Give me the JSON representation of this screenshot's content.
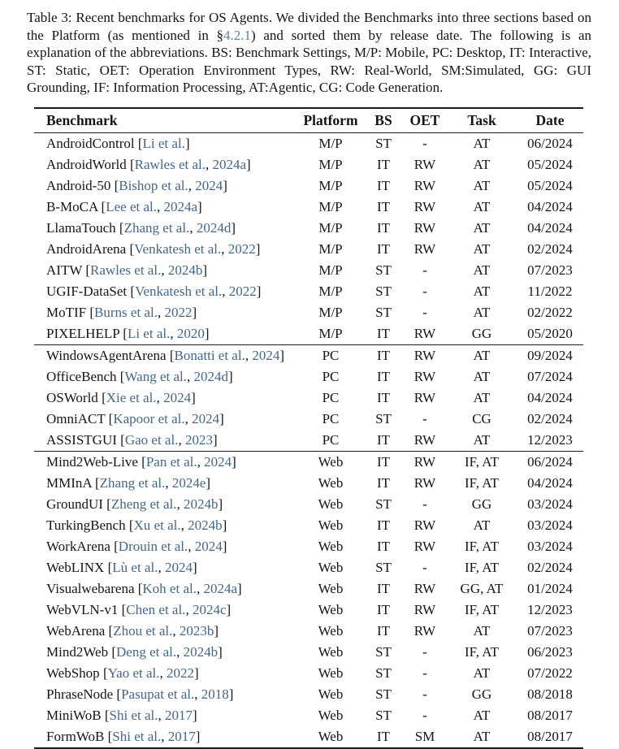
{
  "caption": {
    "text_before_ref": "Table 3: Recent benchmarks for OS Agents. We divided the Benchmarks into three sections based on the Platform (as mentioned in §",
    "ref_text": "4.2.1",
    "text_after_ref": ") and sorted them by release date. The following is an explanation of the abbreviations. BS: Benchmark Settings, M/P: Mobile, PC: Desktop, IT: Interactive, ST: Static, OET: Operation Environment Types, RW: Real-World, SM:Simulated, GG: GUI Grounding, IF: Information Processing, AT:Agentic, CG: Code Generation."
  },
  "colors": {
    "text": "#151515",
    "rule": "#1b1b1b",
    "citation_link": "#44678a",
    "caption_ref_link": "#5d86a0"
  },
  "table": {
    "headers": [
      "Benchmark",
      "Platform",
      "BS",
      "OET",
      "Task",
      "Date"
    ],
    "sections": [
      {
        "name": "mobile",
        "rows": [
          {
            "benchmark": "AndroidControl",
            "authors": "Li et al.",
            "year": "",
            "platform": "M/P",
            "bs": "ST",
            "oet": "-",
            "task": "AT",
            "date": "06/2024"
          },
          {
            "benchmark": "AndroidWorld",
            "authors": "Rawles et al.",
            "year": "2024a",
            "platform": "M/P",
            "bs": "IT",
            "oet": "RW",
            "task": "AT",
            "date": "05/2024"
          },
          {
            "benchmark": "Android-50",
            "authors": "Bishop et al.",
            "year": "2024",
            "platform": "M/P",
            "bs": "IT",
            "oet": "RW",
            "task": "AT",
            "date": "05/2024"
          },
          {
            "benchmark": "B-MoCA",
            "authors": "Lee et al.",
            "year": "2024a",
            "platform": "M/P",
            "bs": "IT",
            "oet": "RW",
            "task": "AT",
            "date": "04/2024"
          },
          {
            "benchmark": "LlamaTouch",
            "authors": "Zhang et al.",
            "year": "2024d",
            "platform": "M/P",
            "bs": "IT",
            "oet": "RW",
            "task": "AT",
            "date": "04/2024"
          },
          {
            "benchmark": "AndroidArena",
            "authors": "Venkatesh et al.",
            "year": "2022",
            "platform": "M/P",
            "bs": "IT",
            "oet": "RW",
            "task": "AT",
            "date": "02/2024"
          },
          {
            "benchmark": "AITW",
            "authors": "Rawles et al.",
            "year": "2024b",
            "platform": "M/P",
            "bs": "ST",
            "oet": "-",
            "task": "AT",
            "date": "07/2023"
          },
          {
            "benchmark": "UGIF-DataSet",
            "authors": "Venkatesh et al.",
            "year": "2022",
            "platform": "M/P",
            "bs": "ST",
            "oet": "-",
            "task": "AT",
            "date": "11/2022"
          },
          {
            "benchmark": "MoTIF",
            "authors": "Burns et al.",
            "year": "2022",
            "platform": "M/P",
            "bs": "ST",
            "oet": "-",
            "task": "AT",
            "date": "02/2022"
          },
          {
            "benchmark": "PIXELHELP",
            "authors": "Li et al.",
            "year": "2020",
            "platform": "M/P",
            "bs": "IT",
            "oet": "RW",
            "task": "GG",
            "date": "05/2020"
          }
        ]
      },
      {
        "name": "desktop",
        "rows": [
          {
            "benchmark": "WindowsAgentArena",
            "authors": "Bonatti et al.",
            "year": "2024",
            "platform": "PC",
            "bs": "IT",
            "oet": "RW",
            "task": "AT",
            "date": "09/2024"
          },
          {
            "benchmark": "OfficeBench",
            "authors": "Wang et al.",
            "year": "2024d",
            "platform": "PC",
            "bs": "IT",
            "oet": "RW",
            "task": "AT",
            "date": "07/2024"
          },
          {
            "benchmark": "OSWorld",
            "authors": "Xie et al.",
            "year": "2024",
            "platform": "PC",
            "bs": "IT",
            "oet": "RW",
            "task": "AT",
            "date": "04/2024"
          },
          {
            "benchmark": "OmniACT",
            "authors": "Kapoor et al.",
            "year": "2024",
            "platform": "PC",
            "bs": "ST",
            "oet": "-",
            "task": "CG",
            "date": "02/2024"
          },
          {
            "benchmark": "ASSISTGUI",
            "authors": "Gao et al.",
            "year": "2023",
            "platform": "PC",
            "bs": "IT",
            "oet": "RW",
            "task": "AT",
            "date": "12/2023"
          }
        ]
      },
      {
        "name": "web",
        "rows": [
          {
            "benchmark": "Mind2Web-Live",
            "authors": "Pan et al.",
            "year": "2024",
            "platform": "Web",
            "bs": "IT",
            "oet": "RW",
            "task": "IF, AT",
            "date": "06/2024"
          },
          {
            "benchmark": "MMInA",
            "authors": "Zhang et al.",
            "year": "2024e",
            "platform": "Web",
            "bs": "IT",
            "oet": "RW",
            "task": "IF, AT",
            "date": "04/2024"
          },
          {
            "benchmark": "GroundUI",
            "authors": "Zheng et al.",
            "year": "2024b",
            "platform": "Web",
            "bs": "ST",
            "oet": "-",
            "task": "GG",
            "date": "03/2024"
          },
          {
            "benchmark": "TurkingBench",
            "authors": "Xu et al.",
            "year": "2024b",
            "platform": "Web",
            "bs": "IT",
            "oet": "RW",
            "task": "AT",
            "date": "03/2024"
          },
          {
            "benchmark": "WorkArena",
            "authors": "Drouin et al.",
            "year": "2024",
            "platform": "Web",
            "bs": "IT",
            "oet": "RW",
            "task": "IF, AT",
            "date": "03/2024"
          },
          {
            "benchmark": "WebLINX",
            "authors": "Lù et al.",
            "year": "2024",
            "platform": "Web",
            "bs": "ST",
            "oet": "-",
            "task": "IF, AT",
            "date": "02/2024"
          },
          {
            "benchmark": "Visualwebarena",
            "authors": "Koh et al.",
            "year": "2024a",
            "platform": "Web",
            "bs": "IT",
            "oet": "RW",
            "task": "GG, AT",
            "date": "01/2024"
          },
          {
            "benchmark": "WebVLN-v1",
            "authors": "Chen et al.",
            "year": "2024c",
            "platform": "Web",
            "bs": "IT",
            "oet": "RW",
            "task": "IF, AT",
            "date": "12/2023"
          },
          {
            "benchmark": "WebArena",
            "authors": "Zhou et al.",
            "year": "2023b",
            "platform": "Web",
            "bs": "IT",
            "oet": "RW",
            "task": "AT",
            "date": "07/2023"
          },
          {
            "benchmark": "Mind2Web",
            "authors": "Deng et al.",
            "year": "2024b",
            "platform": "Web",
            "bs": "ST",
            "oet": "-",
            "task": "IF, AT",
            "date": "06/2023"
          },
          {
            "benchmark": "WebShop",
            "authors": "Yao et al.",
            "year": "2022",
            "platform": "Web",
            "bs": "ST",
            "oet": "-",
            "task": "AT",
            "date": "07/2022"
          },
          {
            "benchmark": "PhraseNode",
            "authors": "Pasupat et al.",
            "year": "2018",
            "platform": "Web",
            "bs": "ST",
            "oet": "-",
            "task": "GG",
            "date": "08/2018"
          },
          {
            "benchmark": "MiniWoB",
            "authors": "Shi et al.",
            "year": "2017",
            "platform": "Web",
            "bs": "ST",
            "oet": "-",
            "task": "AT",
            "date": "08/2017"
          },
          {
            "benchmark": "FormWoB",
            "authors": "Shi et al.",
            "year": "2017",
            "platform": "Web",
            "bs": "IT",
            "oet": "SM",
            "task": "AT",
            "date": "08/2017"
          }
        ]
      }
    ]
  }
}
